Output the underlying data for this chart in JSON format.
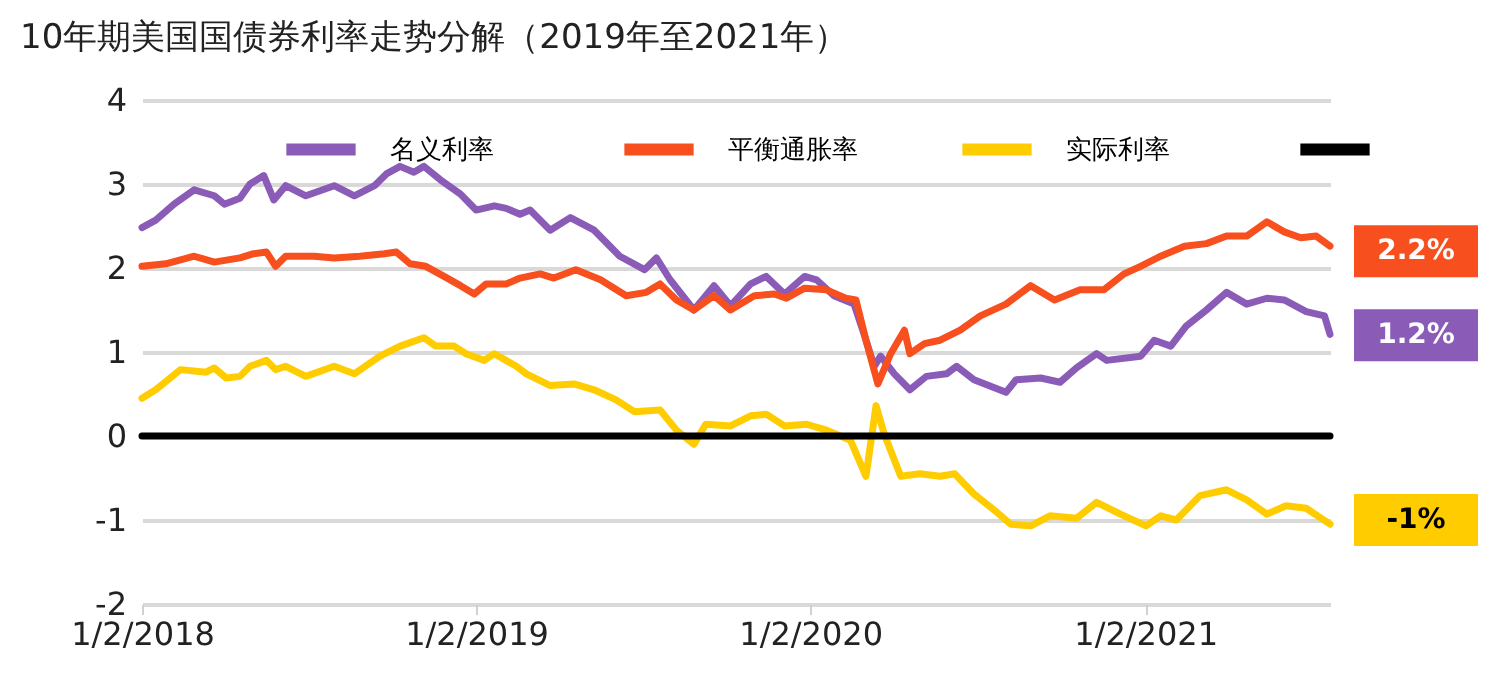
{
  "chart_data": {
    "type": "line",
    "title": "10年期美国国债券利率走势分解（2019年至2021年）",
    "xlim": [
      "2018-01-02",
      "2021-07-23"
    ],
    "xticks": [
      {
        "value": "2018-01-02",
        "label": "1/2/2018"
      },
      {
        "value": "2019-01-02",
        "label": "1/2/2019"
      },
      {
        "value": "2020-01-02",
        "label": "1/2/2020"
      },
      {
        "value": "2021-01-02",
        "label": "1/2/2021"
      }
    ],
    "ylim": [
      -2,
      4
    ],
    "yticks": [
      -2,
      -1,
      0,
      1,
      2,
      3,
      4
    ],
    "grid": "y",
    "legend": "top",
    "series": [
      {
        "name": "名义利率",
        "color": "#8a5cb8",
        "x": [
          "2018-01-02",
          "2018-01-17",
          "2018-02-06",
          "2018-02-28",
          "2018-03-22",
          "2018-04-02",
          "2018-04-19",
          "2018-04-30",
          "2018-05-15",
          "2018-05-26",
          "2018-06-08",
          "2018-06-30",
          "2018-07-31",
          "2018-08-22",
          "2018-09-13",
          "2018-09-26",
          "2018-10-11",
          "2018-10-26",
          "2018-11-06",
          "2018-11-24",
          "2018-12-16",
          "2019-01-02",
          "2019-01-22",
          "2019-02-04",
          "2019-02-19",
          "2019-03-02",
          "2019-03-24",
          "2019-04-15",
          "2019-05-11",
          "2019-06-08",
          "2019-07-05",
          "2019-07-18",
          "2019-08-02",
          "2019-08-28",
          "2019-09-19",
          "2019-10-07",
          "2019-10-29",
          "2019-11-15",
          "2019-12-05",
          "2019-12-27",
          "2020-01-09",
          "2020-01-28",
          "2020-02-19",
          "2020-03-01",
          "2020-03-12",
          "2020-03-19",
          "2020-04-03",
          "2020-04-20",
          "2020-05-08",
          "2020-05-30",
          "2020-06-10",
          "2020-06-29",
          "2020-08-03",
          "2020-08-14",
          "2020-09-10",
          "2020-10-01",
          "2020-10-19",
          "2020-11-10",
          "2020-11-21",
          "2020-12-28",
          "2021-01-12",
          "2021-01-30",
          "2021-02-16",
          "2021-03-10",
          "2021-04-01",
          "2021-04-23",
          "2021-05-15",
          "2021-06-03",
          "2021-06-27",
          "2021-07-17",
          "2021-07-23"
        ],
        "values": [
          2.48,
          2.57,
          2.76,
          2.93,
          2.86,
          2.76,
          2.83,
          3.0,
          3.1,
          2.81,
          2.98,
          2.86,
          2.98,
          2.86,
          2.98,
          3.12,
          3.21,
          3.14,
          3.21,
          3.05,
          2.88,
          2.69,
          2.74,
          2.71,
          2.64,
          2.69,
          2.45,
          2.6,
          2.45,
          2.14,
          1.98,
          2.12,
          1.86,
          1.5,
          1.79,
          1.55,
          1.81,
          1.9,
          1.69,
          1.9,
          1.86,
          1.67,
          1.57,
          1.21,
          0.83,
          0.95,
          0.74,
          0.55,
          0.71,
          0.74,
          0.83,
          0.67,
          0.52,
          0.67,
          0.69,
          0.64,
          0.81,
          0.98,
          0.9,
          0.95,
          1.14,
          1.07,
          1.31,
          1.5,
          1.71,
          1.57,
          1.64,
          1.62,
          1.48,
          1.43,
          1.21
        ]
      },
      {
        "name": "平衡通胀率",
        "color": "#f74f1e",
        "x": [
          "2018-01-02",
          "2018-01-28",
          "2018-02-28",
          "2018-03-22",
          "2018-04-19",
          "2018-05-04",
          "2018-05-18",
          "2018-05-28",
          "2018-06-08",
          "2018-07-09",
          "2018-07-31",
          "2018-08-28",
          "2018-09-24",
          "2018-10-07",
          "2018-10-22",
          "2018-11-08",
          "2018-11-28",
          "2018-12-16",
          "2018-12-31",
          "2019-01-13",
          "2019-02-04",
          "2019-02-19",
          "2019-03-13",
          "2019-03-28",
          "2019-04-21",
          "2019-05-18",
          "2019-06-15",
          "2019-07-07",
          "2019-07-22",
          "2019-08-09",
          "2019-08-28",
          "2019-09-19",
          "2019-10-07",
          "2019-11-02",
          "2019-11-24",
          "2019-12-07",
          "2019-12-27",
          "2020-01-20",
          "2020-02-10",
          "2020-02-21",
          "2020-03-03",
          "2020-03-16",
          "2020-03-30",
          "2020-04-14",
          "2020-04-20",
          "2020-05-06",
          "2020-05-23",
          "2020-06-14",
          "2020-07-06",
          "2020-08-03",
          "2020-08-30",
          "2020-09-25",
          "2020-10-23",
          "2020-11-18",
          "2020-12-10",
          "2020-12-28",
          "2021-01-19",
          "2021-02-14",
          "2021-03-10",
          "2021-04-01",
          "2021-04-23",
          "2021-05-15",
          "2021-06-03",
          "2021-06-21",
          "2021-07-08",
          "2021-07-23"
        ],
        "values": [
          2.02,
          2.05,
          2.14,
          2.07,
          2.12,
          2.17,
          2.19,
          2.02,
          2.14,
          2.14,
          2.12,
          2.14,
          2.17,
          2.19,
          2.05,
          2.02,
          1.9,
          1.79,
          1.69,
          1.81,
          1.81,
          1.88,
          1.93,
          1.88,
          1.98,
          1.86,
          1.67,
          1.71,
          1.81,
          1.62,
          1.5,
          1.67,
          1.5,
          1.67,
          1.69,
          1.64,
          1.76,
          1.74,
          1.64,
          1.62,
          1.14,
          0.62,
          0.98,
          1.26,
          0.98,
          1.1,
          1.14,
          1.26,
          1.43,
          1.57,
          1.79,
          1.62,
          1.74,
          1.74,
          1.93,
          2.02,
          2.14,
          2.26,
          2.29,
          2.38,
          2.38,
          2.55,
          2.43,
          2.36,
          2.38,
          2.26
        ]
      },
      {
        "name": "实际利率",
        "color": "#ffcc00",
        "x": [
          "2018-01-02",
          "2018-01-17",
          "2018-02-13",
          "2018-03-13",
          "2018-03-22",
          "2018-04-04",
          "2018-04-19",
          "2018-04-30",
          "2018-05-18",
          "2018-05-28",
          "2018-06-08",
          "2018-06-30",
          "2018-07-31",
          "2018-08-22",
          "2018-09-19",
          "2018-10-11",
          "2018-11-06",
          "2018-11-19",
          "2018-12-09",
          "2018-12-22",
          "2019-01-11",
          "2019-01-22",
          "2019-02-15",
          "2019-02-26",
          "2019-03-24",
          "2019-04-19",
          "2019-05-11",
          "2019-06-04",
          "2019-06-24",
          "2019-07-22",
          "2019-08-09",
          "2019-08-28",
          "2019-09-10",
          "2019-10-07",
          "2019-10-29",
          "2019-11-15",
          "2019-12-05",
          "2019-12-29",
          "2020-01-20",
          "2020-02-15",
          "2020-03-03",
          "2020-03-14",
          "2020-03-23",
          "2020-04-10",
          "2020-05-01",
          "2020-05-23",
          "2020-06-08",
          "2020-06-29",
          "2020-07-21",
          "2020-08-08",
          "2020-08-30",
          "2020-09-20",
          "2020-10-19",
          "2020-11-10",
          "2020-12-06",
          "2021-01-03",
          "2021-01-19",
          "2021-02-05",
          "2021-03-03",
          "2021-04-01",
          "2021-04-23",
          "2021-05-15",
          "2021-06-05",
          "2021-06-27",
          "2021-07-23"
        ],
        "values": [
          0.45,
          0.55,
          0.79,
          0.76,
          0.81,
          0.69,
          0.71,
          0.83,
          0.9,
          0.79,
          0.83,
          0.71,
          0.83,
          0.74,
          0.95,
          1.07,
          1.17,
          1.07,
          1.07,
          0.98,
          0.9,
          0.98,
          0.83,
          0.74,
          0.6,
          0.62,
          0.55,
          0.43,
          0.29,
          0.31,
          0.07,
          -0.1,
          0.14,
          0.12,
          0.24,
          0.26,
          0.12,
          0.14,
          0.07,
          -0.05,
          -0.48,
          0.36,
          0.02,
          -0.48,
          -0.45,
          -0.48,
          -0.45,
          -0.69,
          -0.88,
          -1.05,
          -1.07,
          -0.95,
          -0.98,
          -0.79,
          -0.93,
          -1.07,
          -0.95,
          -1.0,
          -0.71,
          -0.64,
          -0.76,
          -0.93,
          -0.83,
          -0.86,
          -1.05
        ]
      },
      {
        "color": "#000000",
        "x": [
          "2018-01-02",
          "2021-07-23"
        ],
        "values": [
          0,
          0
        ]
      }
    ],
    "annotations": [
      {
        "text": "2.2%",
        "x": "2021-07-23",
        "y": 2.2
      },
      {
        "text": "1.2%",
        "x": "2021-07-23",
        "y": 1.2
      },
      {
        "text": "-1%",
        "x": "2021-07-23",
        "y": -1
      }
    ]
  }
}
